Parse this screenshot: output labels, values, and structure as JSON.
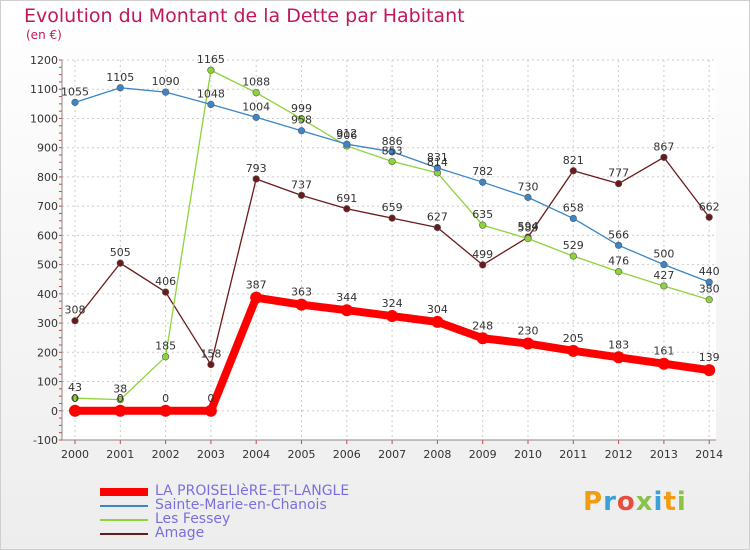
{
  "header": {
    "title": "Evolution du Montant de la Dette par Habitant",
    "subtitle": "(en €)"
  },
  "logo": {
    "text": "Proxiti"
  },
  "chart_data": {
    "type": "line",
    "title": "Evolution du Montant de la Dette par Habitant",
    "subtitle": "(en €)",
    "x": [
      2000,
      2001,
      2002,
      2003,
      2004,
      2005,
      2006,
      2007,
      2008,
      2009,
      2010,
      2011,
      2012,
      2013,
      2014
    ],
    "ylim": [
      -100,
      1200
    ],
    "yticks": [
      -100,
      0,
      100,
      200,
      300,
      400,
      500,
      600,
      700,
      800,
      900,
      1000,
      1100,
      1200
    ],
    "grid": true,
    "legend_position": "bottom-left",
    "series": [
      {
        "name": "LA PROISELIèRE-ET-LANGLE",
        "color": "#ff0000",
        "values": [
          0,
          0,
          0,
          0,
          387,
          363,
          344,
          324,
          304,
          248,
          230,
          205,
          183,
          161,
          139
        ]
      },
      {
        "name": "Sainte-Marie-en-Chanois",
        "color": "#3a86c8",
        "values": [
          1055,
          1105,
          1090,
          1048,
          1004,
          958,
          912,
          886,
          831,
          782,
          730,
          658,
          566,
          500,
          440
        ]
      },
      {
        "name": "Les Fessey",
        "color": "#8ed33a",
        "values": [
          43,
          38,
          185,
          1165,
          1088,
          999,
          906,
          853,
          814,
          635,
          589,
          529,
          476,
          427,
          380
        ]
      },
      {
        "name": "Amage",
        "color": "#6b1a1a",
        "values": [
          308,
          505,
          406,
          158,
          793,
          737,
          691,
          659,
          627,
          499,
          594,
          821,
          777,
          867,
          662
        ]
      }
    ]
  }
}
